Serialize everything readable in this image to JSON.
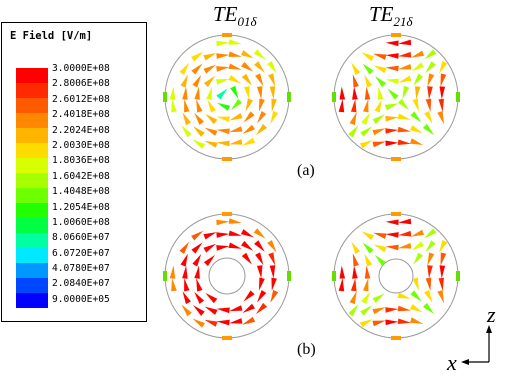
{
  "legend": {
    "title": "E Field [V/m]",
    "values": [
      "3.0000E+08",
      "2.8006E+08",
      "2.6012E+08",
      "2.4018E+08",
      "2.2024E+08",
      "2.0030E+08",
      "1.8036E+08",
      "1.6042E+08",
      "1.4048E+08",
      "1.2054E+08",
      "1.0060E+08",
      "8.0660E+07",
      "6.0720E+07",
      "4.0780E+07",
      "2.0840E+07",
      "9.0000E+05"
    ],
    "colors": [
      "#ff0000",
      "#ff2a00",
      "#ff5a00",
      "#ff8800",
      "#ffb400",
      "#ffdc00",
      "#d8ff00",
      "#a8ff00",
      "#6eff00",
      "#22ff00",
      "#00ff44",
      "#00ffa0",
      "#00e8ff",
      "#0098ff",
      "#0048ff",
      "#0000ff"
    ]
  },
  "modes": {
    "left": {
      "base": "TE",
      "sub": "01δ"
    },
    "right": {
      "base": "TE",
      "sub": "21δ"
    }
  },
  "panels": {
    "a": "(a)",
    "b": "(b)"
  },
  "axes": {
    "z": "z",
    "x": "x"
  }
}
